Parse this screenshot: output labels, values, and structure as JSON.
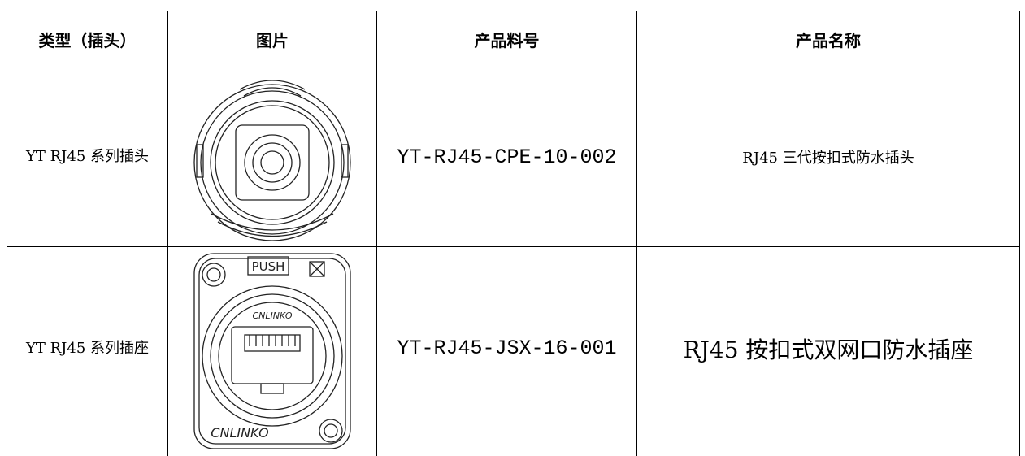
{
  "table": {
    "header": [
      "类型（插头）",
      "图片",
      "产品料号",
      "产品名称"
    ],
    "rows": [
      {
        "type": "YT RJ45 系列插头",
        "part_no": "YT-RJ45-CPE-10-002",
        "name": "RJ45 三代按扣式防水插头"
      },
      {
        "type": "YT RJ45 系列插座",
        "part_no": "YT-RJ45-JSX-16-001",
        "name": "RJ45 按扣式双网口防水插座",
        "image_labels": [
          "PUSH",
          "CNLINKO",
          "CNLINKO"
        ]
      }
    ]
  }
}
